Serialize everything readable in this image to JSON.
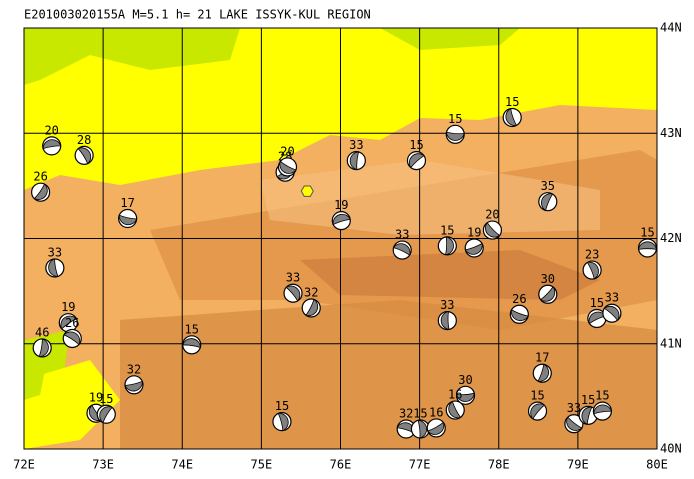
{
  "title": "E201003020155A M=5.1 h= 21 LAKE ISSYK-KUL REGION",
  "lonlim": [
    72,
    80
  ],
  "latlim": [
    40,
    44
  ],
  "lonticks": [
    {
      "value": 72,
      "label": "72E"
    },
    {
      "value": 73,
      "label": "73E"
    },
    {
      "value": 74,
      "label": "74E"
    },
    {
      "value": 75,
      "label": "75E"
    },
    {
      "value": 76,
      "label": "76E"
    },
    {
      "value": 77,
      "label": "77E"
    },
    {
      "value": 78,
      "label": "78E"
    },
    {
      "value": 79,
      "label": "79E"
    },
    {
      "value": 80,
      "label": "80E"
    }
  ],
  "latticks": [
    {
      "value": 40,
      "label": "40N"
    },
    {
      "value": 41,
      "label": "41N"
    },
    {
      "value": 42,
      "label": "42N"
    },
    {
      "value": 43,
      "label": "43N"
    },
    {
      "value": 44,
      "label": "44N"
    }
  ],
  "epicenter": {
    "lon": 75.58,
    "lat": 42.45
  },
  "events": [
    {
      "lon": 72.35,
      "lat": 42.88,
      "depth": 20
    },
    {
      "lon": 72.76,
      "lat": 42.79,
      "depth": 28
    },
    {
      "lon": 72.21,
      "lat": 42.44,
      "depth": 26
    },
    {
      "lon": 73.31,
      "lat": 42.19,
      "depth": 17
    },
    {
      "lon": 72.39,
      "lat": 41.72,
      "depth": 33
    },
    {
      "lon": 72.56,
      "lat": 41.2,
      "depth": 19
    },
    {
      "lon": 72.61,
      "lat": 41.05,
      "depth": 26
    },
    {
      "lon": 72.23,
      "lat": 40.96,
      "depth": 46
    },
    {
      "lon": 73.39,
      "lat": 40.61,
      "depth": 32
    },
    {
      "lon": 72.91,
      "lat": 40.34,
      "depth": 19
    },
    {
      "lon": 73.04,
      "lat": 40.33,
      "depth": 15
    },
    {
      "lon": 74.12,
      "lat": 40.99,
      "depth": 15
    },
    {
      "lon": 75.26,
      "lat": 40.26,
      "depth": 15
    },
    {
      "lon": 75.3,
      "lat": 42.63,
      "depth": 28
    },
    {
      "lon": 75.33,
      "lat": 42.68,
      "depth": 20
    },
    {
      "lon": 76.2,
      "lat": 42.74,
      "depth": 33
    },
    {
      "lon": 76.01,
      "lat": 42.17,
      "depth": 19
    },
    {
      "lon": 75.4,
      "lat": 41.48,
      "depth": 33
    },
    {
      "lon": 75.63,
      "lat": 41.34,
      "depth": 32
    },
    {
      "lon": 77.45,
      "lat": 42.99,
      "depth": 15
    },
    {
      "lon": 78.17,
      "lat": 43.15,
      "depth": 15
    },
    {
      "lon": 76.96,
      "lat": 42.74,
      "depth": 15
    },
    {
      "lon": 76.78,
      "lat": 41.89,
      "depth": 33
    },
    {
      "lon": 77.35,
      "lat": 41.93,
      "depth": 15
    },
    {
      "lon": 77.69,
      "lat": 41.91,
      "depth": 19
    },
    {
      "lon": 77.92,
      "lat": 42.08,
      "depth": 20
    },
    {
      "lon": 78.62,
      "lat": 42.35,
      "depth": 35
    },
    {
      "lon": 79.88,
      "lat": 41.91,
      "depth": 15
    },
    {
      "lon": 79.18,
      "lat": 41.7,
      "depth": 23
    },
    {
      "lon": 78.62,
      "lat": 41.47,
      "depth": 30
    },
    {
      "lon": 78.26,
      "lat": 41.28,
      "depth": 26
    },
    {
      "lon": 77.35,
      "lat": 41.22,
      "depth": 33
    },
    {
      "lon": 79.24,
      "lat": 41.24,
      "depth": 15
    },
    {
      "lon": 79.43,
      "lat": 41.29,
      "depth": 33
    },
    {
      "lon": 78.55,
      "lat": 40.72,
      "depth": 17
    },
    {
      "lon": 77.58,
      "lat": 40.51,
      "depth": 30
    },
    {
      "lon": 77.45,
      "lat": 40.37,
      "depth": 16
    },
    {
      "lon": 78.49,
      "lat": 40.36,
      "depth": 15
    },
    {
      "lon": 76.83,
      "lat": 40.19,
      "depth": 32
    },
    {
      "lon": 77.01,
      "lat": 40.19,
      "depth": 15
    },
    {
      "lon": 77.21,
      "lat": 40.2,
      "depth": 16
    },
    {
      "lon": 78.95,
      "lat": 40.24,
      "depth": 33
    },
    {
      "lon": 79.13,
      "lat": 40.32,
      "depth": 15
    },
    {
      "lon": 79.31,
      "lat": 40.36,
      "depth": 15
    }
  ]
}
